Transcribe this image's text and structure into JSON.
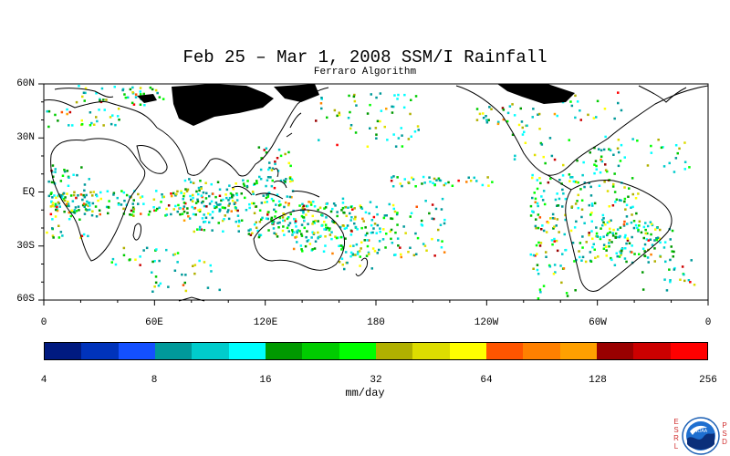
{
  "title": "Feb 25 – Mar 1, 2008 SSM/I Rainfall",
  "subtitle": "Ferraro Algorithm",
  "map": {
    "lat_labels": [
      "60N",
      "30N",
      "EQ",
      "30S",
      "60S"
    ],
    "lat_values": [
      60,
      30,
      0,
      -30,
      -60
    ],
    "lon_labels": [
      "0",
      "60E",
      "120E",
      "180",
      "120W",
      "60W",
      "0"
    ],
    "lon_values": [
      0,
      60,
      120,
      180,
      240,
      300,
      360
    ],
    "lat_range": [
      -60,
      60
    ],
    "lon_range": [
      0,
      360
    ]
  },
  "colorbar": {
    "colors": [
      "#001a80",
      "#0033bb",
      "#1450ff",
      "#00999a",
      "#00cccc",
      "#00ffff",
      "#009900",
      "#00cc00",
      "#00ff00",
      "#b0b000",
      "#dddd00",
      "#ffff00",
      "#ff5500",
      "#ff8000",
      "#ffa000",
      "#990000",
      "#cc0000",
      "#ff0000"
    ],
    "tick_labels": [
      "4",
      "8",
      "16",
      "32",
      "64",
      "128",
      "256"
    ],
    "units": "mm/day"
  },
  "logo": {
    "left_text": "ESRL",
    "right_text": "PSD",
    "emblem": "NOAA",
    "icon": "noaa-emblem-icon"
  }
}
